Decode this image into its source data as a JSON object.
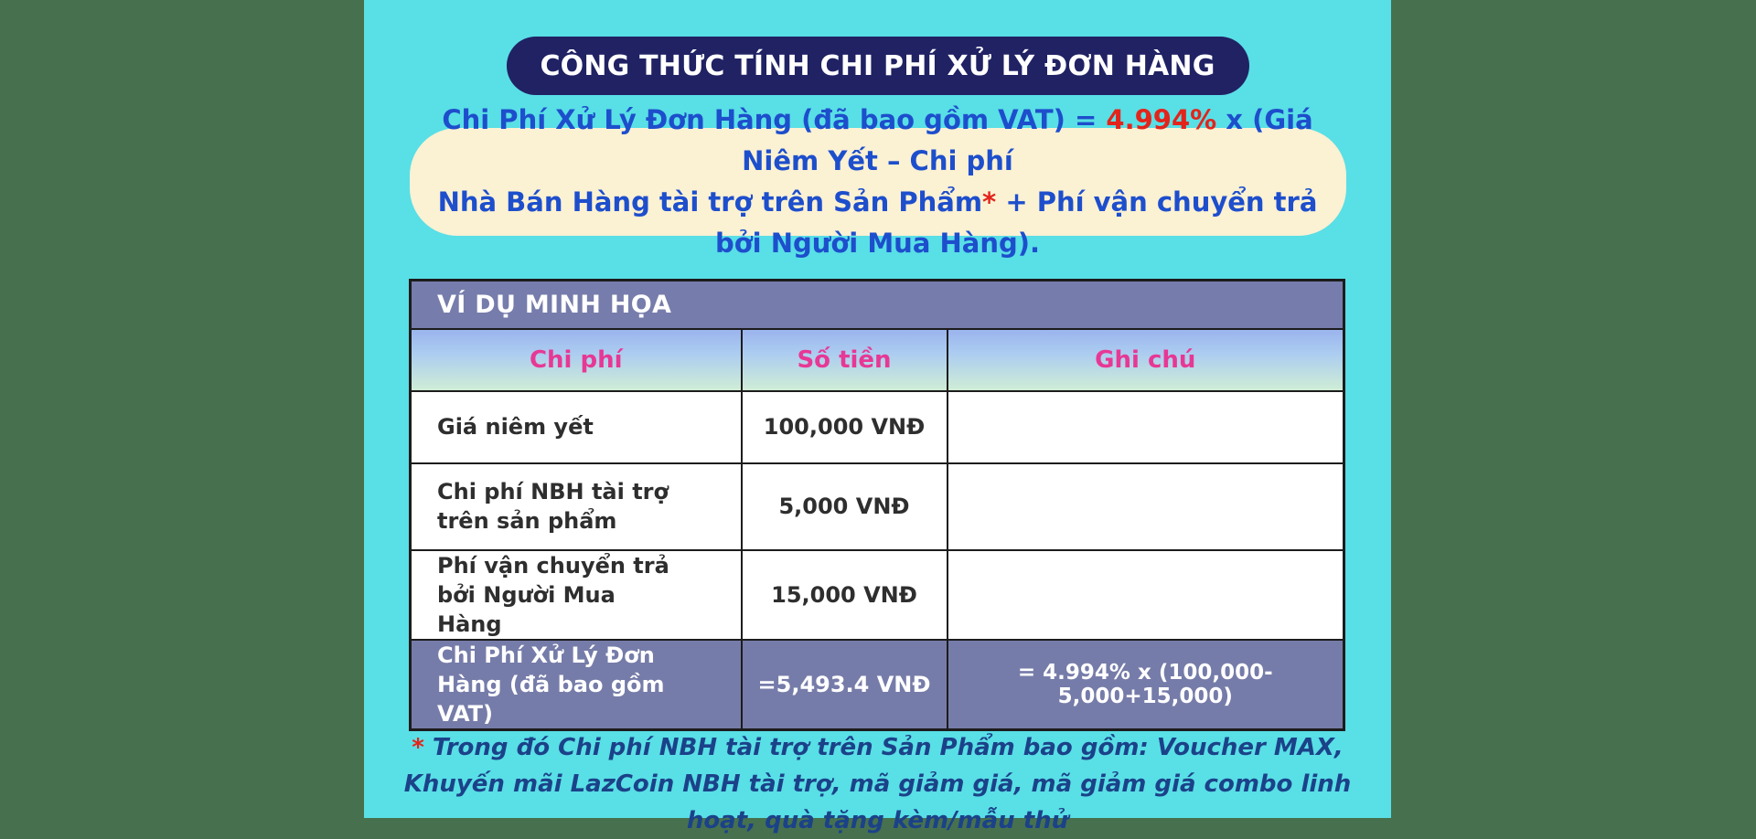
{
  "banner": {
    "title": "CÔNG THỨC TÍNH CHI PHÍ XỬ LÝ ĐƠN HÀNG"
  },
  "formula": {
    "seg1": "Chi Phí Xử Lý Đơn Hàng (đã bao gồm VAT) = ",
    "rate": "4.994%",
    "seg2": " x (Giá Niêm Yết – Chi phí",
    "seg3": "Nhà Bán Hàng tài trợ trên Sản Phẩm",
    "asterisk": "*",
    "seg4": " + Phí vận chuyển trả bởi Người Mua Hàng)."
  },
  "table": {
    "title": "VÍ DỤ MINH HỌA",
    "columns": [
      "Chi phí",
      "Số tiền",
      "Ghi chú"
    ],
    "rows": [
      {
        "label": "Giá niêm yết",
        "amount": "100,000 VNĐ",
        "note": ""
      },
      {
        "label": "Chi phí NBH tài trợ trên sản phẩm",
        "amount": "5,000 VNĐ",
        "note": ""
      },
      {
        "label": "Phí vận chuyển trả bởi Người Mua Hàng",
        "amount": "15,000 VNĐ",
        "note": ""
      },
      {
        "label": "Chi Phí Xử Lý Đơn Hàng (đã bao gồm VAT)",
        "amount": "=5,493.4 VNĐ",
        "note": "= 4.994% x (100,000-5,000+15,000)"
      }
    ]
  },
  "footnote": {
    "asterisk": "*",
    "text": " Trong đó Chi phí NBH tài trợ trên Sản Phẩm bao gồm: Voucher MAX, Khuyến mãi LazCoin NBH tài trợ, mã giảm giá, mã giảm giá combo linh hoạt, quà tặng kèm/mẫu thử"
  },
  "colors": {
    "background_green": "#47714E",
    "card_cyan": "#59DFE6",
    "banner_navy": "#202264",
    "formula_cream": "#FBF1D3",
    "formula_blue": "#1D4ECC",
    "accent_red": "#E3241B",
    "table_purple": "#767CAB",
    "header_pink": "#E73895",
    "footnote_navy": "#1B4289"
  }
}
